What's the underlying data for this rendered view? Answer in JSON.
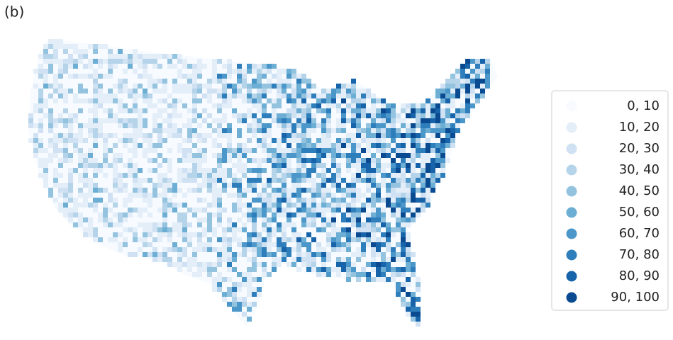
{
  "panel_label": "(b)",
  "legend": {
    "items": [
      {
        "label": "0,  10",
        "color": "#f7fbff"
      },
      {
        "label": "10,  20",
        "color": "#e3eef9"
      },
      {
        "label": "20,  30",
        "color": "#cfe1f2"
      },
      {
        "label": "30,  40",
        "color": "#b5d4e9"
      },
      {
        "label": "40,  50",
        "color": "#93c3df"
      },
      {
        "label": "50,  60",
        "color": "#6daed5"
      },
      {
        "label": "60,  70",
        "color": "#4b97c9"
      },
      {
        "label": "70,  80",
        "color": "#2f7ebc"
      },
      {
        "label": "80,  90",
        "color": "#1864aa"
      },
      {
        "label": "90, 100",
        "color": "#0a4a90"
      }
    ]
  }
}
